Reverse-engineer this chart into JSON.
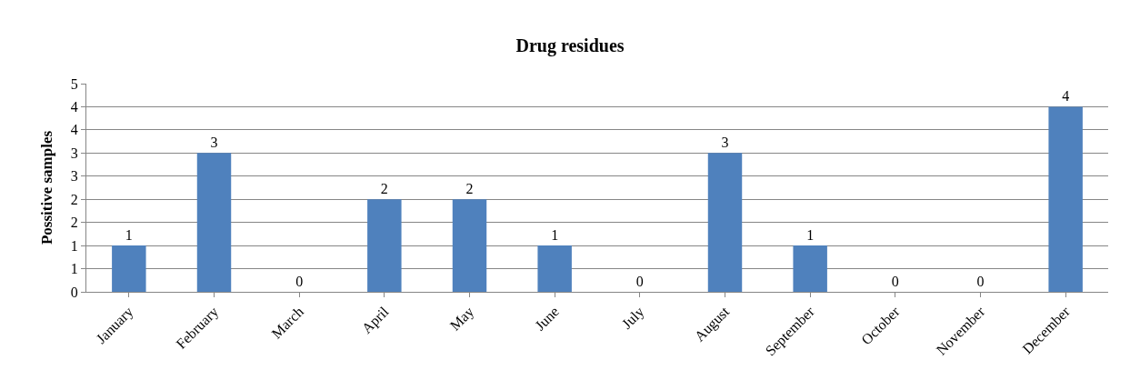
{
  "chart_data": {
    "type": "bar",
    "title": "Drug residues",
    "ylabel": "Possitive samples",
    "categories": [
      "January",
      "February",
      "March",
      "April",
      "May",
      "June",
      "July",
      "August",
      "September",
      "October",
      "November",
      "December"
    ],
    "values": [
      1,
      3,
      0,
      2,
      2,
      1,
      0,
      3,
      1,
      0,
      0,
      4
    ],
    "color": "#4f81bd",
    "ylim": [
      0,
      4.5
    ],
    "yticks": [
      0,
      {
        "value": 0.5,
        "label": "1"
      },
      1,
      {
        "value": 1.5,
        "label": "2"
      },
      2,
      {
        "value": 2.5,
        "label": "3"
      },
      3,
      {
        "value": 3.5,
        "label": "4"
      },
      4,
      {
        "value": 4.5,
        "label": "5"
      }
    ],
    "grid": "y",
    "data_labels": true,
    "legend": false
  }
}
